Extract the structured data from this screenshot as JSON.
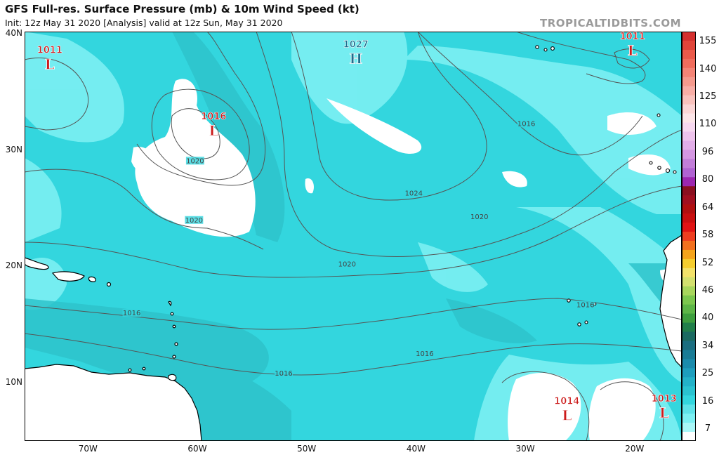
{
  "header": {
    "title": "GFS Full-res. Surface Pressure (mb) & 10m Wind Speed (kt)",
    "subtitle": "Init: 12z May 31 2020   [Analysis]   valid at 12z Sun, May 31 2020",
    "watermark": "TROPICALTIDBITS.COM"
  },
  "map": {
    "lat_labels": [
      {
        "lat": 40,
        "text": "40N"
      },
      {
        "lat": 30,
        "text": "30N"
      },
      {
        "lat": 20,
        "text": "20N"
      },
      {
        "lat": 10,
        "text": "10N"
      }
    ],
    "lon_labels": [
      {
        "lon": -70,
        "text": "70W"
      },
      {
        "lon": -60,
        "text": "60W"
      },
      {
        "lon": -50,
        "text": "50W"
      },
      {
        "lon": -40,
        "text": "40W"
      },
      {
        "lon": -30,
        "text": "30W"
      },
      {
        "lon": -20,
        "text": "20W"
      }
    ],
    "pressure_centers": [
      {
        "type": "L",
        "value": "1011",
        "lon": -73.5,
        "lat": 37.5
      },
      {
        "type": "L",
        "value": "1016",
        "lon": -58.5,
        "lat": 31.8
      },
      {
        "type": "H",
        "value": "1027",
        "lon": -45.5,
        "lat": 38.0
      },
      {
        "type": "L",
        "value": "1011",
        "lon": -20.2,
        "lat": 38.7
      },
      {
        "type": "L",
        "value": "1014",
        "lon": -26.2,
        "lat": 7.3
      },
      {
        "type": "L",
        "value": "1013",
        "lon": -17.3,
        "lat": 7.5
      }
    ],
    "isobar_labels": [
      {
        "text": "1020",
        "lon": -60.2,
        "lat": 29.0
      },
      {
        "text": "1024",
        "lon": -40.2,
        "lat": 26.2
      },
      {
        "text": "1020",
        "lon": -60.3,
        "lat": 23.9
      },
      {
        "text": "1020",
        "lon": -46.3,
        "lat": 20.1
      },
      {
        "text": "1020",
        "lon": -34.2,
        "lat": 24.2
      },
      {
        "text": "1016",
        "lon": -29.9,
        "lat": 32.2
      },
      {
        "text": "1016",
        "lon": -66.0,
        "lat": 15.9
      },
      {
        "text": "1016",
        "lon": -52.1,
        "lat": 10.7
      },
      {
        "text": "1016",
        "lon": -39.2,
        "lat": 12.4
      },
      {
        "text": "1016",
        "lon": -24.5,
        "lat": 16.6
      }
    ],
    "colors": {
      "ocean_base": "#33d6de",
      "calm": "#ffffff",
      "light": "#7cf0f3",
      "strong": "#2ec3cb",
      "land": "#ffffff",
      "coast": "#000000",
      "isobar": "#555555",
      "low": "#cc1b1b",
      "high": "#1e6e8e"
    }
  },
  "colorbar": {
    "labels": [
      "155",
      "140",
      "125",
      "110",
      "96",
      "80",
      "64",
      "58",
      "52",
      "46",
      "40",
      "34",
      "25",
      "16",
      "7"
    ],
    "colors": [
      "#d4312f",
      "#e0453a",
      "#ea5a4a",
      "#f06d5d",
      "#f48476",
      "#f59a8d",
      "#f8aea6",
      "#f9c2bd",
      "#fbd6d6",
      "#fce5e8",
      "#f7d8f0",
      "#eec3ec",
      "#e2aee8",
      "#d497e2",
      "#c27ed9",
      "#b063d2",
      "#9c27b0",
      "#8a1020",
      "#a01020",
      "#b01010",
      "#c81010",
      "#e01414",
      "#ee3e20",
      "#f2701e",
      "#f5a41c",
      "#f5cd2e",
      "#f3e26a",
      "#d3e06e",
      "#a8d65c",
      "#7cc74e",
      "#5db547",
      "#3e9e3e",
      "#217f4a",
      "#1b6a61",
      "#1b6e80",
      "#197c96",
      "#1a8bac",
      "#1d9ebd",
      "#23b2c8",
      "#2ac3d0",
      "#33d6de",
      "#5ee3e9",
      "#7cf0f3",
      "#a8f7f8",
      "#ffffff"
    ]
  }
}
